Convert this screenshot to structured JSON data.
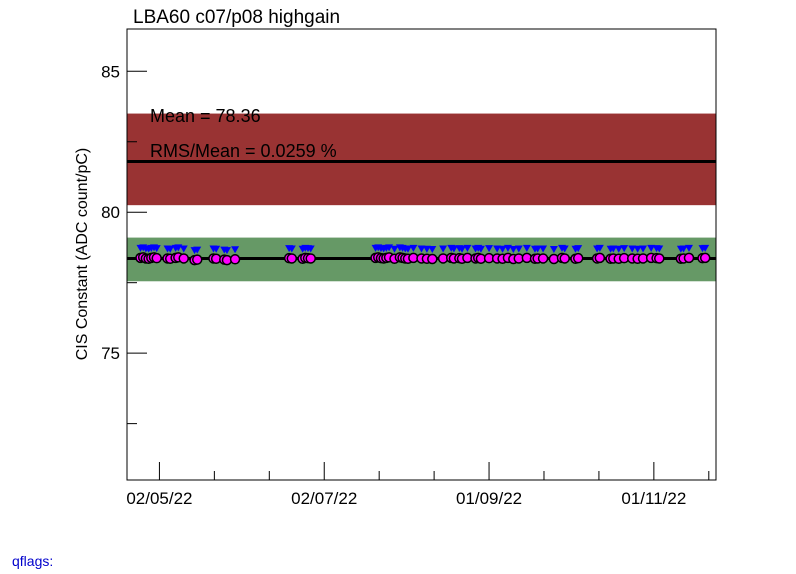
{
  "chart_data": {
    "type": "scatter",
    "title": "LBA60 c07/p08 highgain",
    "ylabel": "CIS Constant (ADC count/pC)",
    "xlabel": "",
    "ylim": [
      70.5,
      86.5
    ],
    "xlim": [
      "2022-04-20",
      "2022-11-24"
    ],
    "y_ticks": [
      75,
      80,
      85
    ],
    "x_ticks": [
      {
        "date": "2022-05-02",
        "label": "02/05/22"
      },
      {
        "date": "2022-07-02",
        "label": "02/07/22"
      },
      {
        "date": "2022-09-01",
        "label": "01/09/22"
      },
      {
        "date": "2022-11-01",
        "label": "01/11/22"
      }
    ],
    "stats": {
      "mean_text": "Mean = 78.36",
      "rms_text": "RMS/Mean = 0.0259 %"
    },
    "mean": 78.36,
    "reference_line": 81.8,
    "red_band": [
      80.25,
      83.5
    ],
    "green_band": [
      77.55,
      79.1
    ],
    "colors": {
      "red_band": "#993333",
      "green_band": "#669966",
      "magenta": "#ff00ff",
      "blue": "#0000ff",
      "line": "#000000"
    },
    "series": [
      {
        "name": "",
        "marker": "circle",
        "dates": [
          "2022-04-25",
          "2022-04-26",
          "2022-04-27",
          "2022-04-28",
          "2022-04-29",
          "2022-04-30",
          "2022-05-01",
          "2022-05-05",
          "2022-05-06",
          "2022-05-08",
          "2022-05-09",
          "2022-05-11",
          "2022-05-15",
          "2022-05-16",
          "2022-05-22",
          "2022-05-23",
          "2022-05-26",
          "2022-05-27",
          "2022-05-30",
          "2022-06-19",
          "2022-06-20",
          "2022-06-24",
          "2022-06-25",
          "2022-06-26",
          "2022-06-27",
          "2022-07-21",
          "2022-07-22",
          "2022-07-23",
          "2022-07-24",
          "2022-07-25",
          "2022-07-26",
          "2022-07-28",
          "2022-07-30",
          "2022-07-31",
          "2022-08-01",
          "2022-08-02",
          "2022-08-04",
          "2022-08-07",
          "2022-08-09",
          "2022-08-11",
          "2022-08-15",
          "2022-08-18",
          "2022-08-19",
          "2022-08-21",
          "2022-08-22",
          "2022-08-24",
          "2022-08-27",
          "2022-08-28",
          "2022-08-29",
          "2022-09-01",
          "2022-09-04",
          "2022-09-06",
          "2022-09-08",
          "2022-09-10",
          "2022-09-12",
          "2022-09-15",
          "2022-09-18",
          "2022-09-19",
          "2022-09-21",
          "2022-09-25",
          "2022-09-28",
          "2022-09-29",
          "2022-10-03",
          "2022-10-04",
          "2022-10-11",
          "2022-10-12",
          "2022-10-16",
          "2022-10-17",
          "2022-10-19",
          "2022-10-21",
          "2022-10-24",
          "2022-10-26",
          "2022-10-28",
          "2022-10-31",
          "2022-11-02",
          "2022-11-03",
          "2022-11-11",
          "2022-11-12",
          "2022-11-14",
          "2022-11-19",
          "2022-11-20"
        ],
        "values": [
          78.38,
          78.4,
          78.36,
          78.35,
          78.38,
          78.4,
          78.37,
          78.36,
          78.35,
          78.38,
          78.4,
          78.36,
          78.3,
          78.32,
          78.36,
          78.35,
          78.32,
          78.3,
          78.33,
          78.37,
          78.36,
          78.35,
          78.38,
          78.37,
          78.36,
          78.38,
          78.4,
          78.37,
          78.36,
          78.38,
          78.4,
          78.35,
          78.4,
          78.38,
          78.36,
          78.35,
          78.38,
          78.36,
          78.35,
          78.34,
          78.36,
          78.38,
          78.36,
          78.37,
          78.35,
          78.38,
          78.36,
          78.38,
          78.35,
          78.37,
          78.36,
          78.35,
          78.38,
          78.34,
          78.36,
          78.38,
          78.35,
          78.36,
          78.36,
          78.34,
          78.38,
          78.36,
          78.35,
          78.37,
          78.36,
          78.38,
          78.35,
          78.36,
          78.35,
          78.37,
          78.36,
          78.35,
          78.36,
          78.38,
          78.37,
          78.36,
          78.35,
          78.36,
          78.38,
          78.37,
          78.38
        ]
      }
    ]
  },
  "footer": {
    "qflags": "qflags:"
  }
}
